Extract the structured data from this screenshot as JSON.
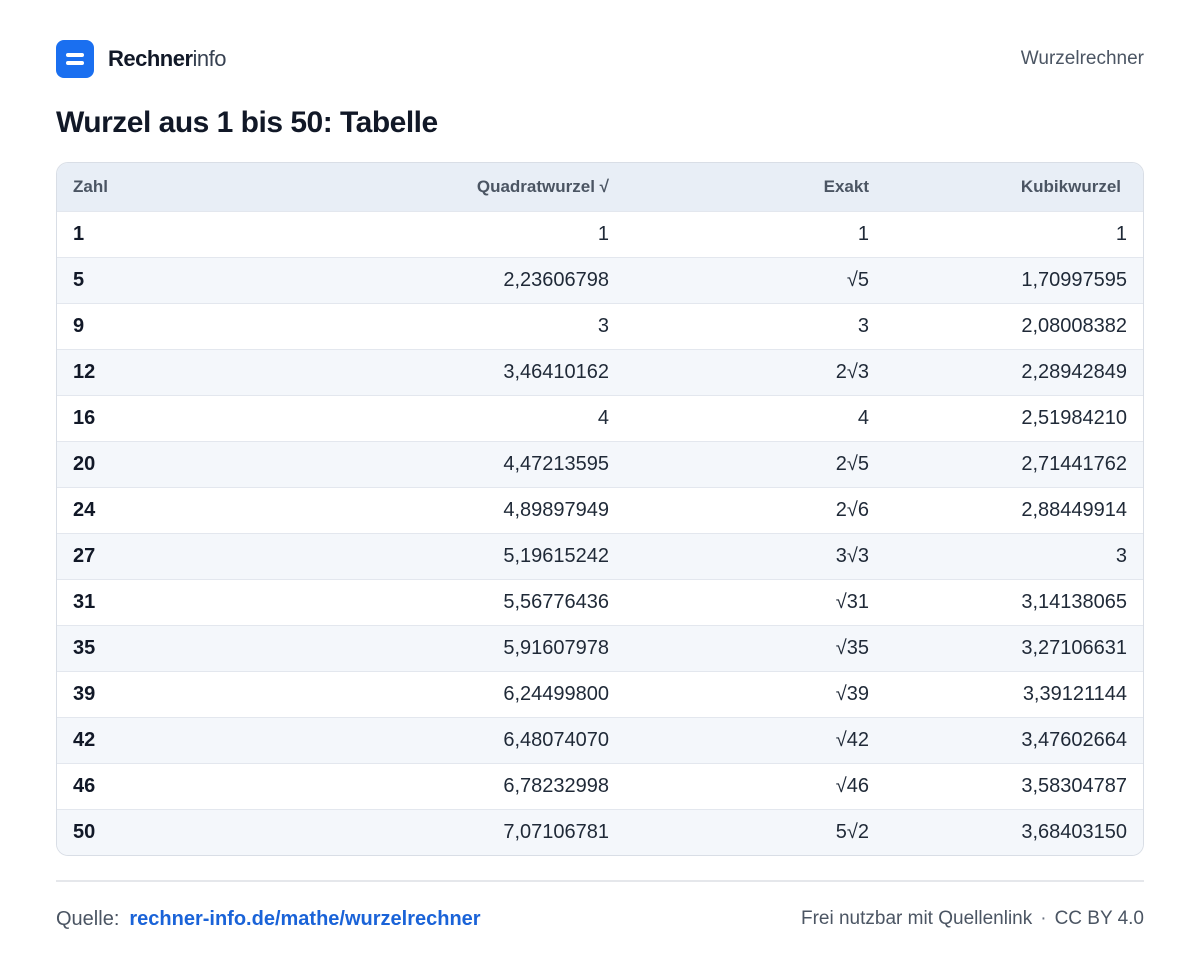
{
  "brand": {
    "name_strong": "Rechner",
    "name_light": "info"
  },
  "header": {
    "link": "Wurzelrechner"
  },
  "title": "Wurzel aus 1 bis 50: Tabelle",
  "table": {
    "columns": [
      "Zahl",
      "Quadratwurzel √",
      "Exakt",
      "Kubikwurzel"
    ],
    "rows": [
      [
        "1",
        "1",
        "1",
        "1"
      ],
      [
        "5",
        "2,23606798",
        "√5",
        "1,70997595"
      ],
      [
        "9",
        "3",
        "3",
        "2,08008382"
      ],
      [
        "12",
        "3,46410162",
        "2√3",
        "2,28942849"
      ],
      [
        "16",
        "4",
        "4",
        "2,51984210"
      ],
      [
        "20",
        "4,47213595",
        "2√5",
        "2,71441762"
      ],
      [
        "24",
        "4,89897949",
        "2√6",
        "2,88449914"
      ],
      [
        "27",
        "5,19615242",
        "3√3",
        "3"
      ],
      [
        "31",
        "5,56776436",
        "√31",
        "3,14138065"
      ],
      [
        "35",
        "5,91607978",
        "√35",
        "3,27106631"
      ],
      [
        "39",
        "6,24499800",
        "√39",
        "3,39121144"
      ],
      [
        "42",
        "6,48074070",
        "√42",
        "3,47602664"
      ],
      [
        "46",
        "6,78232998",
        "√46",
        "3,58304787"
      ],
      [
        "50",
        "7,07106781",
        "5√2",
        "3,68403150"
      ]
    ]
  },
  "footer": {
    "source_label": "Quelle:",
    "source_link": "rechner-info.de/mathe/wurzelrechner",
    "license_text": "Frei nutzbar mit Quellenlink",
    "separator": "·",
    "license": "CC BY 4.0"
  },
  "colors": {
    "accent": "#1a6ff0",
    "link": "#1a63d8",
    "header_bg": "#e8eef6",
    "stripe": "#f4f7fb"
  },
  "icons": {
    "logo": "equals-logo-icon"
  }
}
